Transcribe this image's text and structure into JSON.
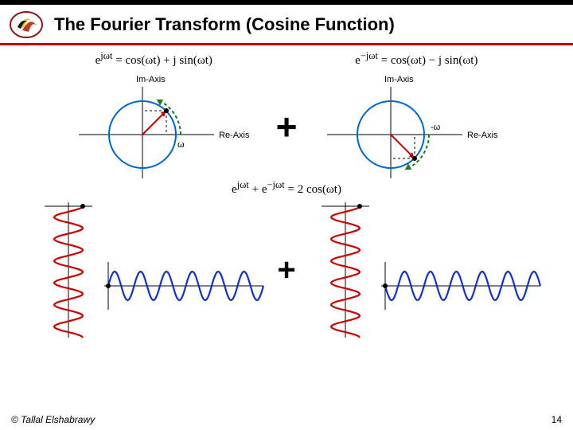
{
  "header": {
    "title": "The Fourier Transform (Cosine Function)",
    "underline_color": "#c00000",
    "topbar_color": "#000000"
  },
  "logo": {
    "outer_stroke": "#8a1a1a",
    "fill_yellow": "#f2c200",
    "fill_red": "#c0392b",
    "fill_black": "#111111"
  },
  "equations": {
    "left": "e^{jωt} = cos(ωt) + j sin(ωt)",
    "right": "e^{−jωt} = cos(ωt) − j sin(ωt)",
    "center": "e^{jωt} + e^{−jωt} = 2 cos(ωt)"
  },
  "phasor": {
    "im_label": "Im-Axis",
    "re_label": "Re-Axis",
    "omega_pos": "ω",
    "omega_neg": "-ω",
    "circle_stroke": "#0066d6",
    "circle_stroke_width": 2,
    "axis_stroke": "#000000",
    "arc_color": "#1a7f1a",
    "arc_dash": "4 3",
    "radius_color": "#cc0000",
    "proj_dash_color": "#000000",
    "font_size": 11
  },
  "waves": {
    "vertical_color": "#cc0000",
    "horizontal_color": "#1030d0",
    "axis_color": "#000000",
    "stroke_width": 2.2,
    "amplitude": 18,
    "cycles_v": 6,
    "cycles_h": 6
  },
  "footer": {
    "copyright": "© Tallal Elshabrawy",
    "page": "14"
  },
  "colors": {
    "text": "#000000",
    "bg": "#ffffff"
  }
}
